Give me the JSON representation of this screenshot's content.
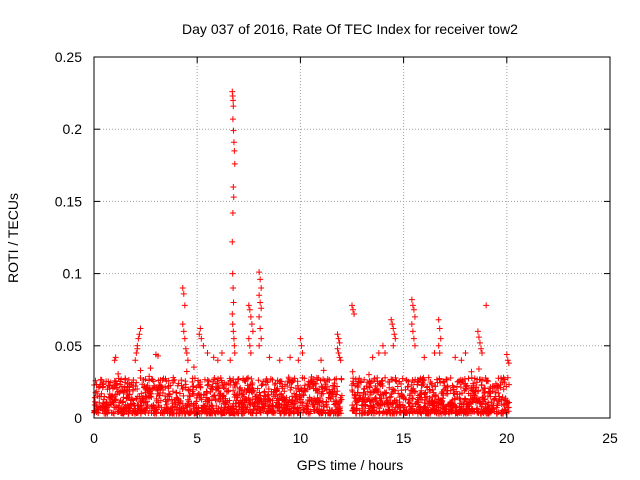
{
  "chart_data": {
    "type": "scatter",
    "title": "Day 037 of 2016, Rate Of TEC Index for receiver tow2",
    "xlabel": "GPS time / hours",
    "ylabel": "ROTI / TECUs",
    "xlim": [
      0,
      25
    ],
    "ylim": [
      0,
      0.25
    ],
    "x_ticks": [
      0,
      5,
      10,
      15,
      20,
      25
    ],
    "x_tick_labels": [
      "0",
      "5",
      "10",
      "15",
      "20",
      "25"
    ],
    "y_ticks": [
      0,
      0.05,
      0.1,
      0.15,
      0.2,
      0.25
    ],
    "y_tick_labels": [
      "0",
      "0.05",
      "0.1",
      "0.15",
      "0.2",
      "0.25"
    ],
    "grid": true,
    "marker": "+",
    "marker_color": "#ff0000",
    "baseline": {
      "segments": [
        [
          0,
          12.0
        ],
        [
          12.5,
          20.1
        ]
      ],
      "min": 0.003,
      "typical_max": 0.028
    },
    "series": [
      {
        "name": "ROTI",
        "points": [
          [
            1.0,
            0.04
          ],
          [
            1.05,
            0.042
          ],
          [
            2.0,
            0.04
          ],
          [
            2.05,
            0.045
          ],
          [
            2.1,
            0.05
          ],
          [
            2.15,
            0.055
          ],
          [
            2.2,
            0.058
          ],
          [
            2.25,
            0.062
          ],
          [
            2.1,
            0.048
          ],
          [
            3.0,
            0.044
          ],
          [
            3.1,
            0.043
          ],
          [
            4.3,
            0.09
          ],
          [
            4.35,
            0.086
          ],
          [
            4.4,
            0.078
          ],
          [
            4.3,
            0.065
          ],
          [
            4.35,
            0.06
          ],
          [
            4.4,
            0.055
          ],
          [
            4.45,
            0.048
          ],
          [
            4.5,
            0.045
          ],
          [
            4.55,
            0.04
          ],
          [
            5.1,
            0.058
          ],
          [
            5.15,
            0.062
          ],
          [
            5.2,
            0.055
          ],
          [
            5.3,
            0.05
          ],
          [
            5.5,
            0.045
          ],
          [
            5.8,
            0.042
          ],
          [
            6.0,
            0.04
          ],
          [
            6.2,
            0.045
          ],
          [
            6.7,
            0.226
          ],
          [
            6.72,
            0.223
          ],
          [
            6.74,
            0.22
          ],
          [
            6.75,
            0.216
          ],
          [
            6.73,
            0.207
          ],
          [
            6.76,
            0.199
          ],
          [
            6.78,
            0.191
          ],
          [
            6.8,
            0.185
          ],
          [
            6.82,
            0.176
          ],
          [
            6.75,
            0.16
          ],
          [
            6.77,
            0.153
          ],
          [
            6.73,
            0.142
          ],
          [
            6.7,
            0.122
          ],
          [
            6.72,
            0.1
          ],
          [
            6.74,
            0.09
          ],
          [
            6.76,
            0.08
          ],
          [
            6.7,
            0.072
          ],
          [
            6.72,
            0.065
          ],
          [
            6.75,
            0.06
          ],
          [
            6.78,
            0.055
          ],
          [
            6.8,
            0.05
          ],
          [
            6.82,
            0.045
          ],
          [
            6.6,
            0.04
          ],
          [
            7.5,
            0.078
          ],
          [
            7.55,
            0.075
          ],
          [
            7.6,
            0.07
          ],
          [
            7.65,
            0.065
          ],
          [
            7.7,
            0.06
          ],
          [
            7.5,
            0.055
          ],
          [
            7.55,
            0.05
          ],
          [
            7.6,
            0.045
          ],
          [
            8.0,
            0.101
          ],
          [
            8.05,
            0.096
          ],
          [
            8.1,
            0.09
          ],
          [
            8.0,
            0.085
          ],
          [
            8.05,
            0.08
          ],
          [
            8.1,
            0.076
          ],
          [
            8.0,
            0.07
          ],
          [
            8.05,
            0.062
          ],
          [
            8.1,
            0.055
          ],
          [
            8.0,
            0.05
          ],
          [
            8.5,
            0.042
          ],
          [
            9.0,
            0.04
          ],
          [
            9.5,
            0.042
          ],
          [
            10.0,
            0.055
          ],
          [
            10.05,
            0.05
          ],
          [
            10.1,
            0.045
          ],
          [
            9.9,
            0.04
          ],
          [
            11.0,
            0.04
          ],
          [
            11.8,
            0.058
          ],
          [
            11.85,
            0.055
          ],
          [
            11.9,
            0.052
          ],
          [
            11.8,
            0.048
          ],
          [
            11.85,
            0.045
          ],
          [
            11.9,
            0.042
          ],
          [
            11.95,
            0.04
          ],
          [
            12.5,
            0.078
          ],
          [
            12.55,
            0.075
          ],
          [
            12.6,
            0.072
          ],
          [
            13.5,
            0.042
          ],
          [
            13.8,
            0.045
          ],
          [
            14.0,
            0.05
          ],
          [
            14.1,
            0.045
          ],
          [
            14.4,
            0.068
          ],
          [
            14.45,
            0.065
          ],
          [
            14.5,
            0.062
          ],
          [
            14.55,
            0.058
          ],
          [
            14.6,
            0.055
          ],
          [
            14.5,
            0.05
          ],
          [
            15.4,
            0.082
          ],
          [
            15.45,
            0.078
          ],
          [
            15.5,
            0.075
          ],
          [
            15.55,
            0.07
          ],
          [
            15.4,
            0.065
          ],
          [
            15.45,
            0.06
          ],
          [
            15.5,
            0.055
          ],
          [
            15.55,
            0.05
          ],
          [
            16.0,
            0.042
          ],
          [
            16.5,
            0.045
          ],
          [
            16.7,
            0.068
          ],
          [
            16.75,
            0.062
          ],
          [
            16.8,
            0.055
          ],
          [
            16.7,
            0.05
          ],
          [
            16.75,
            0.045
          ],
          [
            17.5,
            0.042
          ],
          [
            17.8,
            0.04
          ],
          [
            18.0,
            0.045
          ],
          [
            18.6,
            0.06
          ],
          [
            18.65,
            0.056
          ],
          [
            18.7,
            0.052
          ],
          [
            18.75,
            0.048
          ],
          [
            18.8,
            0.045
          ],
          [
            19.0,
            0.078
          ],
          [
            20.0,
            0.044
          ],
          [
            20.05,
            0.04
          ],
          [
            20.1,
            0.038
          ]
        ]
      }
    ]
  }
}
